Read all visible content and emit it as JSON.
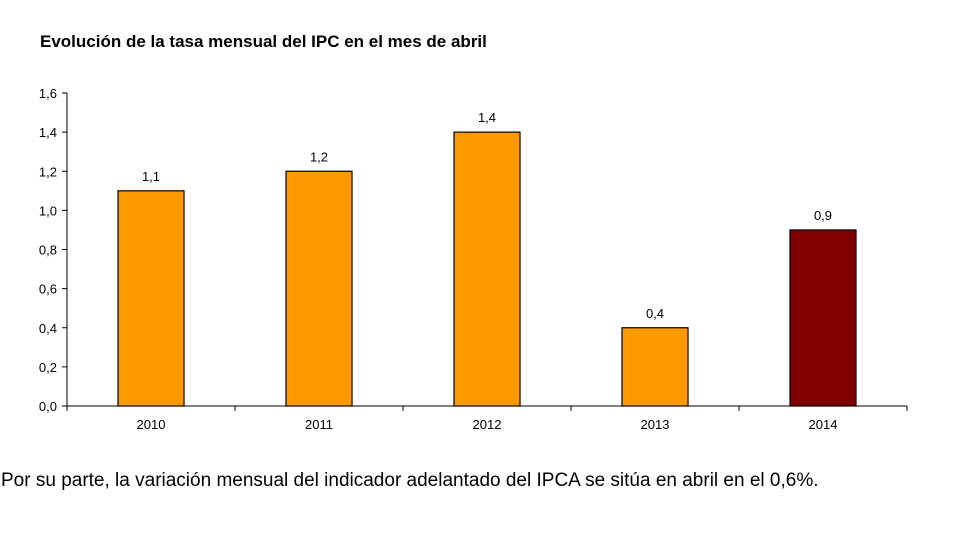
{
  "chart_data": {
    "type": "bar",
    "title": "Evolución de la tasa mensual del IPC en el mes de abril",
    "categories": [
      "2010",
      "2011",
      "2012",
      "2013",
      "2014"
    ],
    "values": [
      1.1,
      1.2,
      1.4,
      0.4,
      0.9
    ],
    "data_labels": [
      "1,1",
      "1,2",
      "1,4",
      "0,4",
      "0,9"
    ],
    "bar_colors": [
      "#FF9900",
      "#FF9900",
      "#FF9900",
      "#FF9900",
      "#800000"
    ],
    "ylim": [
      0,
      1.6
    ],
    "yticks": [
      "0,0",
      "0,2",
      "0,4",
      "0,6",
      "0,8",
      "1,0",
      "1,2",
      "1,4",
      "1,6"
    ],
    "xlabel": "",
    "ylabel": "",
    "grid": false,
    "legend": false
  },
  "body_text": "Por su parte, la variación mensual del indicador adelantado del IPCA se sitúa en abril en el 0,6%."
}
